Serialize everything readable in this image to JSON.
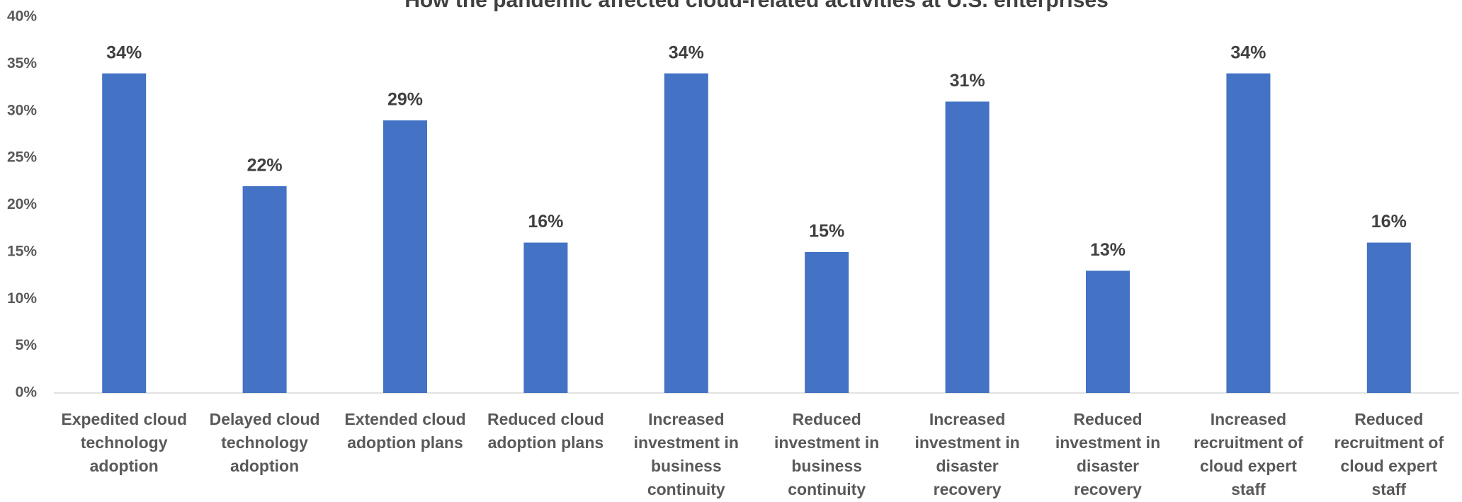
{
  "chart_data": {
    "type": "bar",
    "title": "How the pandemic affected cloud-related activities at U.S. enterprises",
    "categories": [
      "Expedited cloud technology adoption",
      "Delayed cloud technology adoption",
      "Extended cloud adoption plans",
      "Reduced cloud adoption plans",
      "Increased investment in business continuity",
      "Reduced investment in business continuity",
      "Increased investment in disaster recovery",
      "Reduced investment in disaster recovery",
      "Increased recruitment of cloud expert staff",
      "Reduced recruitment of cloud expert staff"
    ],
    "values": [
      34,
      22,
      29,
      16,
      34,
      15,
      31,
      13,
      34,
      16
    ],
    "value_labels": [
      "34%",
      "22%",
      "29%",
      "16%",
      "34%",
      "15%",
      "31%",
      "13%",
      "34%",
      "16%"
    ],
    "color": "#4472c4",
    "ylim": [
      0,
      40
    ],
    "yticks": [
      {
        "value": 0,
        "label": "0%"
      },
      {
        "value": 5,
        "label": "5%"
      },
      {
        "value": 10,
        "label": "10%"
      },
      {
        "value": 15,
        "label": "15%"
      },
      {
        "value": 20,
        "label": "20%"
      },
      {
        "value": 25,
        "label": "25%"
      },
      {
        "value": 30,
        "label": "30%"
      },
      {
        "value": 35,
        "label": "35%"
      },
      {
        "value": 40,
        "label": "40%"
      }
    ],
    "grid": false
  }
}
